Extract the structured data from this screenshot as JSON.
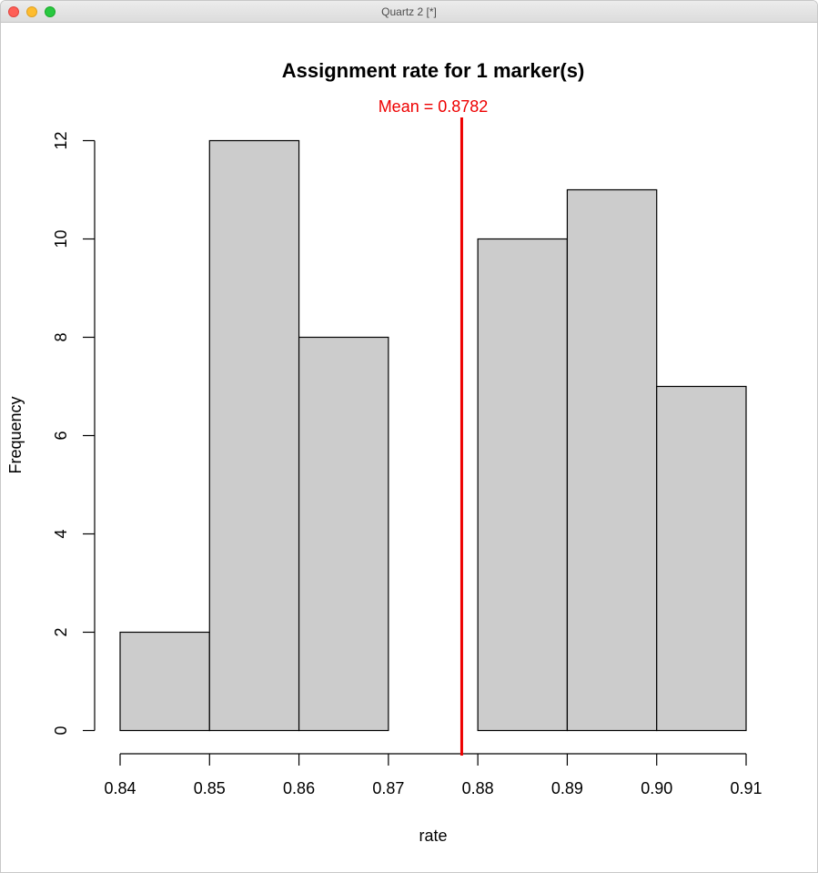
{
  "window": {
    "title": "Quartz 2 [*]"
  },
  "colors": {
    "bar_fill": "#cccccc",
    "bar_stroke": "#000000",
    "mean_line": "#ee0000",
    "text": "#000000"
  },
  "chart_data": {
    "type": "bar",
    "title": "Assignment rate for 1 marker(s)",
    "xlabel": "rate",
    "ylabel": "Frequency",
    "bins": [
      {
        "start": 0.84,
        "end": 0.85,
        "count": 2
      },
      {
        "start": 0.85,
        "end": 0.86,
        "count": 12
      },
      {
        "start": 0.86,
        "end": 0.87,
        "count": 8
      },
      {
        "start": 0.87,
        "end": 0.88,
        "count": 0
      },
      {
        "start": 0.88,
        "end": 0.89,
        "count": 10
      },
      {
        "start": 0.89,
        "end": 0.9,
        "count": 11
      },
      {
        "start": 0.9,
        "end": 0.91,
        "count": 7
      }
    ],
    "xlim": [
      0.84,
      0.91
    ],
    "ylim": [
      0,
      12
    ],
    "x_ticks": [
      "0.84",
      "0.85",
      "0.86",
      "0.87",
      "0.88",
      "0.89",
      "0.90",
      "0.91"
    ],
    "x_tick_values": [
      0.84,
      0.85,
      0.86,
      0.87,
      0.88,
      0.89,
      0.9,
      0.91
    ],
    "y_ticks": [
      "0",
      "2",
      "4",
      "6",
      "8",
      "10",
      "12"
    ],
    "y_tick_values": [
      0,
      2,
      4,
      6,
      8,
      10,
      12
    ],
    "mean": {
      "value": 0.8782,
      "label": "Mean = 0.8782"
    },
    "grid": false,
    "legend": "none"
  }
}
